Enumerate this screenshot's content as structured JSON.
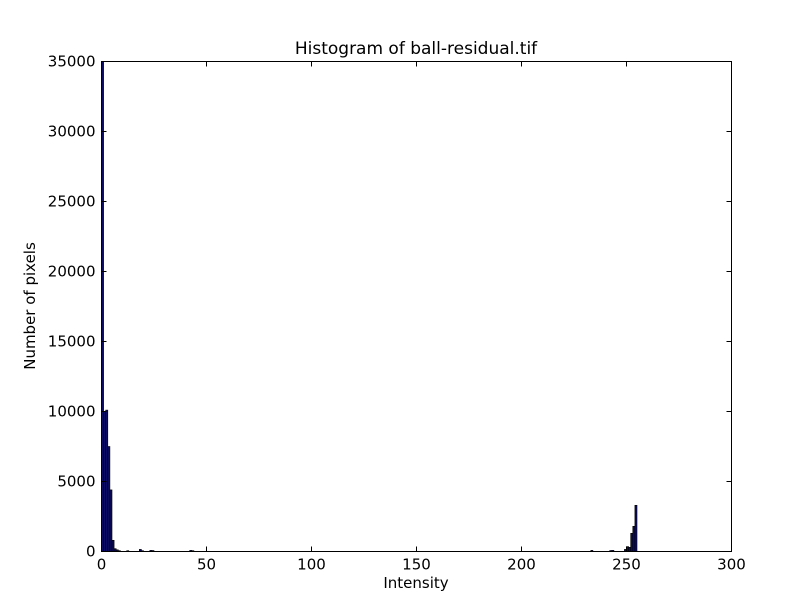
{
  "chart_data": {
    "type": "bar",
    "title": "Histogram of ball-residual.tif",
    "xlabel": "Intensity",
    "ylabel": "Number of pixels",
    "xlim": [
      0,
      300
    ],
    "ylim": [
      0,
      35000
    ],
    "xticks": [
      0,
      50,
      100,
      150,
      200,
      250,
      300
    ],
    "yticks": [
      0,
      5000,
      10000,
      15000,
      20000,
      25000,
      30000,
      35000
    ],
    "bar_width": 1,
    "bar_color": "#0b0b66",
    "grid": false,
    "legend": false,
    "bins": [
      {
        "x": 0,
        "value": 35000
      },
      {
        "x": 1,
        "value": 10000
      },
      {
        "x": 2,
        "value": 10100
      },
      {
        "x": 3,
        "value": 7500
      },
      {
        "x": 4,
        "value": 4400
      },
      {
        "x": 5,
        "value": 800
      },
      {
        "x": 6,
        "value": 200
      },
      {
        "x": 7,
        "value": 120
      },
      {
        "x": 8,
        "value": 60
      },
      {
        "x": 12,
        "value": 60
      },
      {
        "x": 18,
        "value": 150
      },
      {
        "x": 19,
        "value": 60
      },
      {
        "x": 23,
        "value": 80
      },
      {
        "x": 24,
        "value": 70
      },
      {
        "x": 42,
        "value": 80
      },
      {
        "x": 43,
        "value": 60
      },
      {
        "x": 233,
        "value": 80
      },
      {
        "x": 242,
        "value": 70
      },
      {
        "x": 243,
        "value": 80
      },
      {
        "x": 249,
        "value": 150
      },
      {
        "x": 250,
        "value": 350
      },
      {
        "x": 251,
        "value": 300
      },
      {
        "x": 252,
        "value": 1300
      },
      {
        "x": 253,
        "value": 1800
      },
      {
        "x": 254,
        "value": 3300
      }
    ]
  }
}
